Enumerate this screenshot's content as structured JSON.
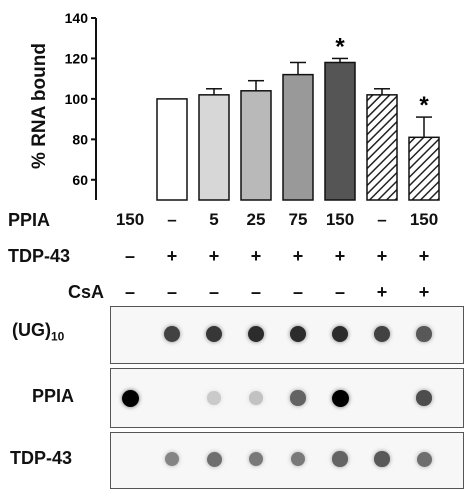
{
  "chart_data": {
    "type": "bar",
    "ylabel": "% RNA bound",
    "ylim": [
      50,
      140
    ],
    "yticks": [
      "60",
      "80",
      "100",
      "120",
      "140"
    ],
    "categories": [
      "150",
      "–",
      "5",
      "25",
      "75",
      "150",
      "–",
      "150"
    ],
    "values": [
      null,
      100,
      102,
      104,
      112,
      118,
      102,
      81
    ],
    "errors": [
      null,
      0,
      3,
      5,
      6,
      2,
      3,
      10
    ],
    "hatched": [
      false,
      false,
      false,
      false,
      false,
      false,
      true,
      true
    ],
    "significance": [
      "",
      "",
      "",
      "",
      "",
      "*",
      "",
      "*"
    ],
    "colors": [
      "#ffffff",
      "#ffffff",
      "#d7d7d7",
      "#b9b9b9",
      "#999999",
      "#555555",
      "#ffffff",
      "#ffffff"
    ]
  },
  "rows": {
    "ppia": {
      "label": "PPIA",
      "values": [
        "150",
        "–",
        "5",
        "25",
        "75",
        "150",
        "–",
        "150"
      ]
    },
    "tdp43": {
      "label": "TDP-43",
      "values": [
        "–",
        "+",
        "+",
        "+",
        "+",
        "+",
        "+",
        "+"
      ]
    },
    "csa": {
      "label": "CsA",
      "values": [
        "–",
        "–",
        "–",
        "–",
        "–",
        "–",
        "+",
        "+"
      ]
    }
  },
  "blots": {
    "ug10": {
      "label_main": "(UG)",
      "label_sub": "10",
      "intensity": [
        0.0,
        0.7,
        0.75,
        0.8,
        0.8,
        0.8,
        0.7,
        0.6
      ]
    },
    "ppia": {
      "label": "PPIA",
      "intensity": [
        1.0,
        0.0,
        0.08,
        0.12,
        0.55,
        1.0,
        0.0,
        0.65
      ]
    },
    "tdp43": {
      "label": "TDP-43",
      "intensity": [
        0.0,
        0.4,
        0.5,
        0.45,
        0.45,
        0.55,
        0.6,
        0.5
      ]
    }
  }
}
